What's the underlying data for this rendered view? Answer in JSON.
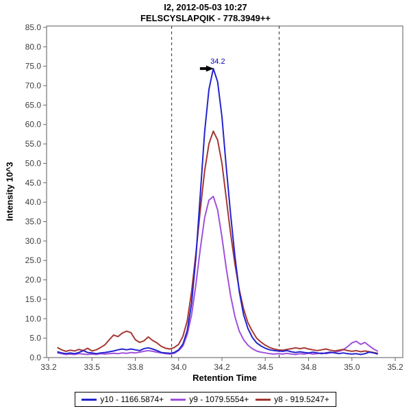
{
  "title": {
    "line1": "I2, 2012-05-03 10:27",
    "line2": "FELSCYSLAPQIK - 778.3949++"
  },
  "axes": {
    "x_label": "Retention Time",
    "y_label": "Intensity 10^3",
    "x_ticks": [
      {
        "label": "33.2",
        "t": 33.25
      },
      {
        "label": "33.5",
        "t": 33.5
      },
      {
        "label": "33.8",
        "t": 33.75
      },
      {
        "label": "34.0",
        "t": 34.0
      },
      {
        "label": "34.2",
        "t": 34.25
      },
      {
        "label": "34.5",
        "t": 34.5
      },
      {
        "label": "34.8",
        "t": 34.75
      },
      {
        "label": "35.0",
        "t": 35.0
      },
      {
        "label": "35.2",
        "t": 35.25
      }
    ],
    "y_ticks": [
      {
        "label": "0.0",
        "v": 0
      },
      {
        "label": "5.0",
        "v": 5
      },
      {
        "label": "10.0",
        "v": 10
      },
      {
        "label": "15.0",
        "v": 15
      },
      {
        "label": "20.0",
        "v": 20
      },
      {
        "label": "25.0",
        "v": 25
      },
      {
        "label": "30.0",
        "v": 30
      },
      {
        "label": "35.0",
        "v": 35
      },
      {
        "label": "40.0",
        "v": 40
      },
      {
        "label": "45.0",
        "v": 45
      },
      {
        "label": "50.0",
        "v": 50
      },
      {
        "label": "55.0",
        "v": 55
      },
      {
        "label": "60.0",
        "v": 60
      },
      {
        "label": "65.0",
        "v": 65
      },
      {
        "label": "70.0",
        "v": 70
      },
      {
        "label": "75.0",
        "v": 75
      },
      {
        "label": "80.0",
        "v": 80
      },
      {
        "label": "85.0",
        "v": 85
      }
    ]
  },
  "chart_data": {
    "type": "line",
    "title": "I2, 2012-05-03 10:27 — FELSCYSLAPQIK - 778.3949++",
    "xlabel": "Retention Time",
    "ylabel": "Intensity 10^3",
    "xlim": [
      33.24,
      35.29
    ],
    "ylim": [
      0,
      85.35
    ],
    "grid": false,
    "legend_position": "bottom",
    "boundaries": [
      33.96,
      34.58
    ],
    "annotation": {
      "text": "34.2",
      "t": 34.21,
      "v": 74.4,
      "color": "#0000bb"
    },
    "x": [
      33.3,
      33.325,
      33.35,
      33.375,
      33.4,
      33.425,
      33.45,
      33.475,
      33.5,
      33.525,
      33.55,
      33.575,
      33.6,
      33.625,
      33.65,
      33.675,
      33.7,
      33.725,
      33.75,
      33.775,
      33.8,
      33.825,
      33.85,
      33.875,
      33.9,
      33.925,
      33.95,
      33.975,
      34.0,
      34.025,
      34.05,
      34.075,
      34.1,
      34.125,
      34.15,
      34.175,
      34.2,
      34.225,
      34.25,
      34.275,
      34.3,
      34.325,
      34.35,
      34.375,
      34.4,
      34.425,
      34.45,
      34.475,
      34.5,
      34.525,
      34.55,
      34.575,
      34.6,
      34.625,
      34.65,
      34.675,
      34.7,
      34.725,
      34.75,
      34.775,
      34.8,
      34.825,
      34.85,
      34.875,
      34.9,
      34.925,
      34.95,
      34.975,
      35.0,
      35.025,
      35.05,
      35.075,
      35.1,
      35.125,
      35.15
    ],
    "series": [
      {
        "name": "y10 - 1166.5874+",
        "color": "#2323ce",
        "values": [
          1.5,
          1.2,
          1.0,
          1.2,
          1.0,
          1.3,
          1.8,
          1.3,
          1.2,
          1.0,
          1.2,
          1.3,
          1.5,
          1.7,
          2.0,
          2.2,
          2.0,
          2.2,
          2.0,
          1.8,
          2.3,
          2.5,
          2.2,
          1.8,
          1.3,
          1.2,
          1.1,
          1.3,
          2.0,
          3.5,
          7.0,
          14.0,
          26.0,
          42.0,
          58.0,
          69.0,
          74.4,
          71.0,
          62.0,
          49.0,
          37.0,
          26.0,
          17.0,
          11.0,
          7.5,
          5.2,
          3.8,
          3.0,
          2.4,
          2.0,
          1.8,
          1.7,
          1.6,
          1.8,
          1.5,
          1.3,
          1.5,
          1.3,
          1.2,
          1.4,
          1.2,
          1.0,
          1.2,
          1.4,
          1.2,
          1.0,
          1.2,
          1.0,
          0.9,
          1.0,
          0.8,
          1.0,
          1.4,
          1.2,
          0.9
        ]
      },
      {
        "name": "y9 - 1079.5554+",
        "color": "#a050dc",
        "values": [
          1.2,
          1.0,
          0.8,
          0.9,
          0.8,
          1.0,
          0.9,
          0.8,
          0.9,
          0.8,
          1.0,
          0.9,
          1.0,
          1.1,
          1.0,
          1.2,
          1.1,
          1.3,
          1.2,
          1.4,
          1.6,
          1.8,
          1.6,
          1.4,
          1.2,
          1.0,
          0.9,
          1.1,
          1.8,
          3.0,
          6.0,
          11.0,
          19.0,
          28.0,
          36.0,
          40.5,
          41.5,
          38.0,
          31.0,
          23.0,
          16.0,
          10.5,
          6.8,
          4.6,
          3.2,
          2.3,
          1.7,
          1.4,
          1.2,
          1.0,
          0.9,
          1.0,
          0.9,
          1.1,
          0.9,
          0.8,
          1.0,
          0.9,
          1.1,
          0.9,
          1.0,
          1.2,
          1.0,
          1.2,
          1.4,
          1.6,
          2.0,
          2.8,
          3.8,
          4.2,
          3.4,
          3.9,
          3.0,
          2.2,
          1.6
        ]
      },
      {
        "name": "y8 - 919.5247+",
        "color": "#a43732",
        "values": [
          2.6,
          2.0,
          1.6,
          1.9,
          1.7,
          2.1,
          1.8,
          2.4,
          1.7,
          2.0,
          2.6,
          3.3,
          4.6,
          5.8,
          5.4,
          6.3,
          6.8,
          6.4,
          4.6,
          3.9,
          4.3,
          5.3,
          4.4,
          3.8,
          2.9,
          2.4,
          2.2,
          2.6,
          3.4,
          5.5,
          9.5,
          17.0,
          27.0,
          38.0,
          48.0,
          55.0,
          58.3,
          56.0,
          50.0,
          41.0,
          32.0,
          24.0,
          17.5,
          12.5,
          9.0,
          6.8,
          5.0,
          4.0,
          3.2,
          2.6,
          2.2,
          2.0,
          1.9,
          2.1,
          2.3,
          2.5,
          2.3,
          2.5,
          2.2,
          2.0,
          1.8,
          2.0,
          2.2,
          1.9,
          1.7,
          1.9,
          2.1,
          1.8,
          1.6,
          1.8,
          1.5,
          1.7,
          1.5,
          1.3,
          1.1
        ]
      }
    ]
  },
  "legend": {
    "items": [
      {
        "label": "y10 - 1166.5874+",
        "color": "#2323ce"
      },
      {
        "label": "y9 - 1079.5554+",
        "color": "#a050dc"
      },
      {
        "label": "y8 - 919.5247+",
        "color": "#a43732"
      }
    ]
  }
}
